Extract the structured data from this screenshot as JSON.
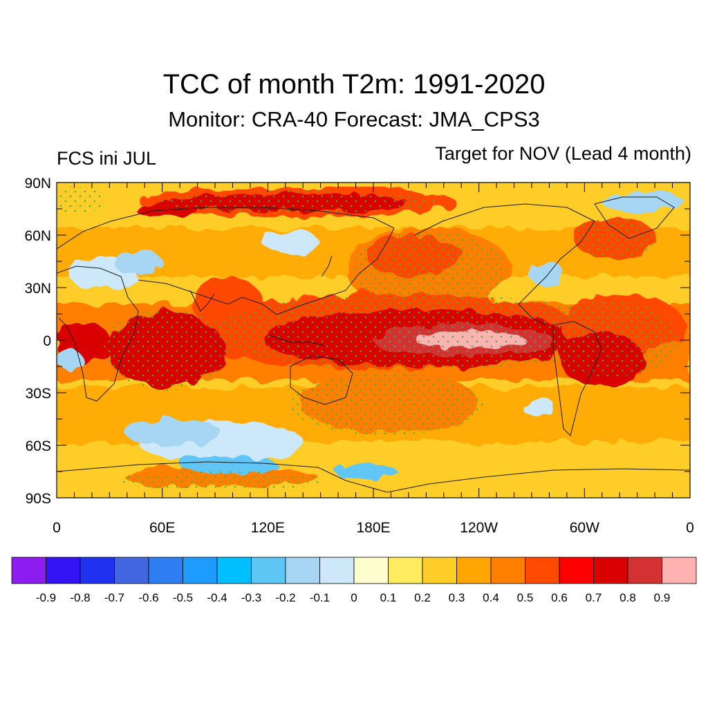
{
  "header": {
    "title": "TCC of month T2m: 1991-2020",
    "subtitle": "Monitor: CRA-40   Forecast: JMA_CPS3",
    "left_label": "FCS ini JUL",
    "right_label": "Target for NOV (Lead 4 month)"
  },
  "map": {
    "projection": "cylindrical-equidistant",
    "lon_range": [
      0,
      360
    ],
    "lat_range": [
      -90,
      90
    ],
    "lat_ticks": [
      {
        "value": 90,
        "label": "90N"
      },
      {
        "value": 60,
        "label": "60N"
      },
      {
        "value": 30,
        "label": "30N"
      },
      {
        "value": 0,
        "label": "0"
      },
      {
        "value": -30,
        "label": "30S"
      },
      {
        "value": -60,
        "label": "60S"
      },
      {
        "value": -90,
        "label": "90S"
      }
    ],
    "lon_ticks": [
      {
        "value": 0,
        "label": "0"
      },
      {
        "value": 60,
        "label": "60E"
      },
      {
        "value": 120,
        "label": "120E"
      },
      {
        "value": 180,
        "label": "180E"
      },
      {
        "value": 240,
        "label": "120W"
      },
      {
        "value": 300,
        "label": "60W"
      },
      {
        "value": 360,
        "label": "0"
      }
    ],
    "stipple_color": "#3cb43c",
    "coastline_color": "#1a1a1a"
  },
  "colorbar": {
    "colors": [
      "#8c1cf0",
      "#3414f5",
      "#1e32ef",
      "#4266e0",
      "#2e7ef2",
      "#1e9bff",
      "#00bfff",
      "#5ec6f5",
      "#a6d6f2",
      "#cde8f8",
      "#fffece",
      "#ffec5e",
      "#ffcd28",
      "#ffa600",
      "#ff8000",
      "#ff4a00",
      "#ff0000",
      "#d80000",
      "#d43232",
      "#ffb2b2"
    ],
    "labels": [
      "-0.9",
      "-0.8",
      "-0.7",
      "-0.6",
      "-0.5",
      "-0.4",
      "-0.3",
      "-0.2",
      "-0.1",
      "0",
      "0.1",
      "0.2",
      "0.3",
      "0.4",
      "0.5",
      "0.6",
      "0.7",
      "0.8",
      "0.9"
    ]
  }
}
